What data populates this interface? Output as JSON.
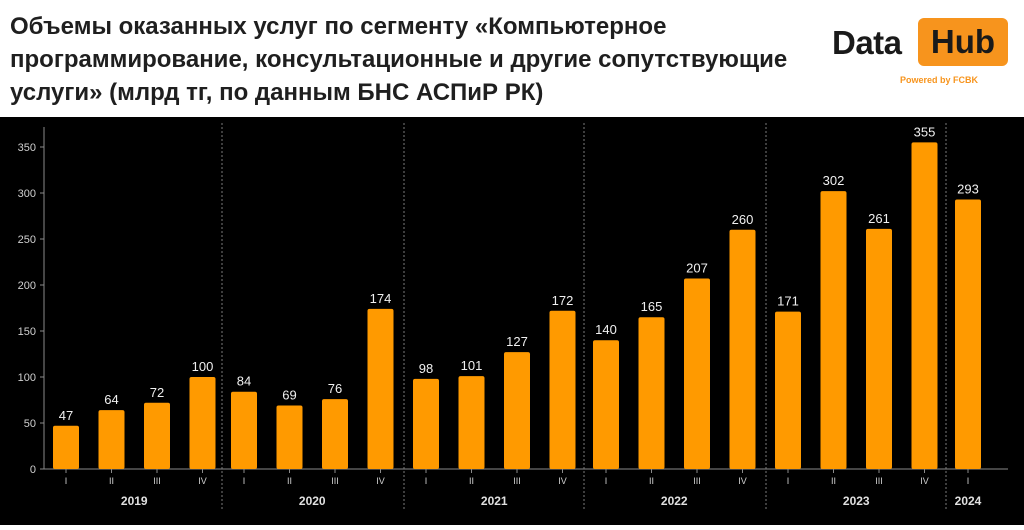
{
  "title": "Объемы оказанных услуг по сегменту «Компьютерное программирование, консультационные и другие сопутствующие услуги» (млрд тг, по данным БНС АСПиР РК)",
  "logo": {
    "data": "Data",
    "hub": "Hub",
    "powered": "Powered by FCBK"
  },
  "colors": {
    "bar": "#ff9a00",
    "background": "#000000",
    "accent": "#f7941d"
  },
  "chart_data": {
    "type": "bar",
    "title": "Объемы оказанных услуг по сегменту «Компьютерное программирование, консультационные и другие сопутствующие услуги» (млрд тг, по данным БНС АСПиР РК)",
    "ylim": [
      0,
      375
    ],
    "yticks": [
      0,
      50,
      100,
      150,
      200,
      250,
      300,
      350
    ],
    "grid": false,
    "groups": [
      {
        "year": "2019",
        "quarters": [
          "I",
          "II",
          "III",
          "IV"
        ],
        "values": [
          47,
          64,
          72,
          100
        ]
      },
      {
        "year": "2020",
        "quarters": [
          "I",
          "II",
          "III",
          "IV"
        ],
        "values": [
          84,
          69,
          76,
          174
        ]
      },
      {
        "year": "2021",
        "quarters": [
          "I",
          "II",
          "III",
          "IV"
        ],
        "values": [
          98,
          101,
          127,
          172
        ]
      },
      {
        "year": "2022",
        "quarters": [
          "I",
          "II",
          "III",
          "IV"
        ],
        "values": [
          140,
          165,
          207,
          260
        ]
      },
      {
        "year": "2023",
        "quarters": [
          "I",
          "II",
          "III",
          "IV"
        ],
        "values": [
          171,
          302,
          261,
          355
        ]
      },
      {
        "year": "2024",
        "quarters": [
          "I"
        ],
        "values": [
          293
        ]
      }
    ]
  }
}
